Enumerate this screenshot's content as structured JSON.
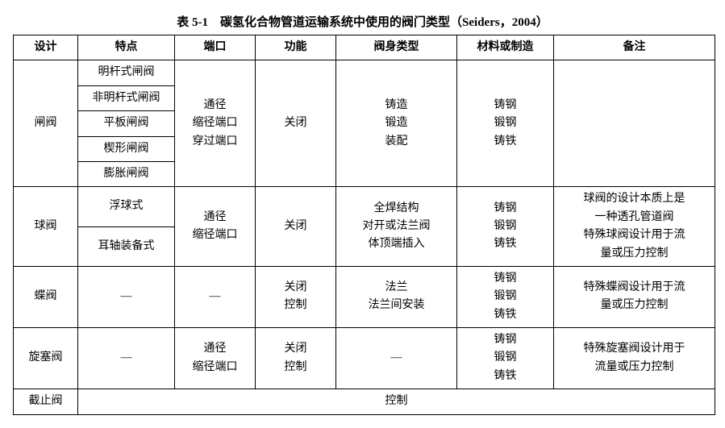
{
  "caption": "表 5-1　碳氢化合物管道运输系统中使用的阀门类型（Seiders，2004）",
  "headers": {
    "design": "设计",
    "feature": "特点",
    "port": "端口",
    "function": "功能",
    "body_type": "阀身类型",
    "material": "材料或制造",
    "remark": "备注"
  },
  "gate": {
    "design": "闸阀",
    "features": [
      "明杆式闸阀",
      "非明杆式闸阀",
      "平板闸阀",
      "楔形闸阀",
      "膨胀闸阀"
    ],
    "port": [
      "通径",
      "缩径端口",
      "穿过端口"
    ],
    "function": "关闭",
    "body_type": [
      "铸造",
      "锻造",
      "装配"
    ],
    "material": [
      "铸钢",
      "锻钢",
      "铸铁"
    ],
    "remark": ""
  },
  "ball": {
    "design": "球阀",
    "features": [
      "浮球式",
      "耳轴装备式"
    ],
    "port": [
      "通径",
      "缩径端口"
    ],
    "function": "关闭",
    "body_type": [
      "全焊结构",
      "对开或法兰阀",
      "体顶端插入"
    ],
    "material": [
      "铸钢",
      "锻钢",
      "铸铁"
    ],
    "remark": [
      "球阀的设计本质上是",
      "一种透孔管道阀",
      "特殊球阀设计用于流",
      "量或压力控制"
    ]
  },
  "butterfly": {
    "design": "蝶阀",
    "feature": "—",
    "port": "—",
    "function": [
      "关闭",
      "控制"
    ],
    "body_type": [
      "法兰",
      "法兰间安装"
    ],
    "material": [
      "铸钢",
      "锻钢",
      "铸铁"
    ],
    "remark": [
      "特殊蝶阀设计用于流",
      "量或压力控制"
    ]
  },
  "plug": {
    "design": "旋塞阀",
    "feature": "—",
    "port": [
      "通径",
      "缩径端口"
    ],
    "function": [
      "关闭",
      "控制"
    ],
    "body_type": "—",
    "material": [
      "铸钢",
      "锻钢",
      "铸铁"
    ],
    "remark": [
      "特殊旋塞阀设计用于",
      "流量或压力控制"
    ]
  },
  "globe": {
    "design": "截止阀",
    "merged": "控制"
  },
  "col_widths": [
    "80",
    "120",
    "100",
    "100",
    "150",
    "120",
    "200"
  ]
}
